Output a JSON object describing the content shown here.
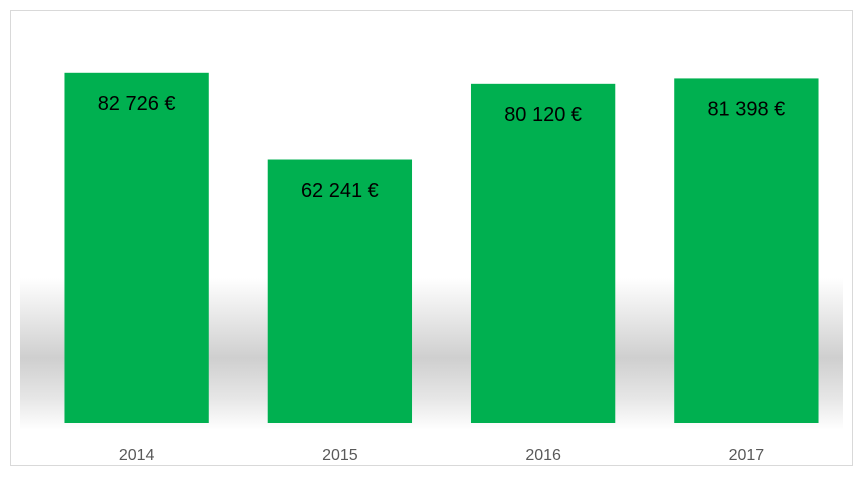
{
  "chart_data": {
    "type": "bar",
    "categories": [
      "2014",
      "2015",
      "2016",
      "2017"
    ],
    "values": [
      82726,
      62241,
      80120,
      81398
    ],
    "value_labels": [
      "82 726 €",
      "62 241 €",
      "80 120 €",
      "81 398 €"
    ],
    "color": "#00b050",
    "ylim": [
      0,
      90000
    ]
  }
}
